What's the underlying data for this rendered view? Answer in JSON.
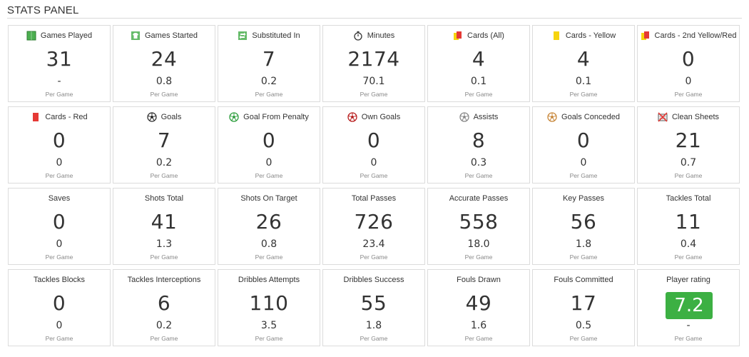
{
  "panel": {
    "title": "STATS PANEL"
  },
  "colors": {
    "rating_bg": "#3cb043",
    "yellow_card": "#f6d40f",
    "red_card": "#e53935",
    "pitch_green": "#4caf50"
  },
  "cards": [
    {
      "label": "Games Played",
      "icon": "pitch-icon",
      "value": "31",
      "per": "-",
      "per_label": "Per Game"
    },
    {
      "label": "Games Started",
      "icon": "shirt-icon",
      "value": "24",
      "per": "0.8",
      "per_label": "Per Game"
    },
    {
      "label": "Substituted In",
      "icon": "substitution-icon",
      "value": "7",
      "per": "0.2",
      "per_label": "Per Game"
    },
    {
      "label": "Minutes",
      "icon": "stopwatch-icon",
      "value": "2174",
      "per": "70.1",
      "per_label": "Per Game"
    },
    {
      "label": "Cards (All)",
      "icon": "cards-all-icon",
      "value": "4",
      "per": "0.1",
      "per_label": "Per Game"
    },
    {
      "label": "Cards - Yellow",
      "icon": "yellow-card-icon",
      "value": "4",
      "per": "0.1",
      "per_label": "Per Game"
    },
    {
      "label": "Cards - 2nd Yellow/Red",
      "icon": "second-yellow-icon",
      "value": "0",
      "per": "0",
      "per_label": "Per Game"
    },
    {
      "label": "Cards - Red",
      "icon": "red-card-icon",
      "value": "0",
      "per": "0",
      "per_label": "Per Game"
    },
    {
      "label": "Goals",
      "icon": "ball-icon",
      "value": "7",
      "per": "0.2",
      "per_label": "Per Game"
    },
    {
      "label": "Goal From Penalty",
      "icon": "penalty-ball-icon",
      "value": "0",
      "per": "0",
      "per_label": "Per Game"
    },
    {
      "label": "Own Goals",
      "icon": "own-goal-ball-icon",
      "value": "0",
      "per": "0",
      "per_label": "Per Game"
    },
    {
      "label": "Assists",
      "icon": "assist-ball-icon",
      "value": "8",
      "per": "0.3",
      "per_label": "Per Game"
    },
    {
      "label": "Goals Conceded",
      "icon": "conceded-ball-icon",
      "value": "0",
      "per": "0",
      "per_label": "Per Game"
    },
    {
      "label": "Clean Sheets",
      "icon": "clean-sheet-icon",
      "value": "21",
      "per": "0.7",
      "per_label": "Per Game"
    },
    {
      "label": "Saves",
      "icon": "",
      "value": "0",
      "per": "0",
      "per_label": "Per Game"
    },
    {
      "label": "Shots Total",
      "icon": "",
      "value": "41",
      "per": "1.3",
      "per_label": "Per Game"
    },
    {
      "label": "Shots On Target",
      "icon": "",
      "value": "26",
      "per": "0.8",
      "per_label": "Per Game"
    },
    {
      "label": "Total Passes",
      "icon": "",
      "value": "726",
      "per": "23.4",
      "per_label": "Per Game"
    },
    {
      "label": "Accurate Passes",
      "icon": "",
      "value": "558",
      "per": "18.0",
      "per_label": "Per Game"
    },
    {
      "label": "Key Passes",
      "icon": "",
      "value": "56",
      "per": "1.8",
      "per_label": "Per Game"
    },
    {
      "label": "Tackles Total",
      "icon": "",
      "value": "11",
      "per": "0.4",
      "per_label": "Per Game"
    },
    {
      "label": "Tackles Blocks",
      "icon": "",
      "value": "0",
      "per": "0",
      "per_label": "Per Game"
    },
    {
      "label": "Tackles Interceptions",
      "icon": "",
      "value": "6",
      "per": "0.2",
      "per_label": "Per Game"
    },
    {
      "label": "Dribbles Attempts",
      "icon": "",
      "value": "110",
      "per": "3.5",
      "per_label": "Per Game"
    },
    {
      "label": "Dribbles Success",
      "icon": "",
      "value": "55",
      "per": "1.8",
      "per_label": "Per Game"
    },
    {
      "label": "Fouls Drawn",
      "icon": "",
      "value": "49",
      "per": "1.6",
      "per_label": "Per Game"
    },
    {
      "label": "Fouls Committed",
      "icon": "",
      "value": "17",
      "per": "0.5",
      "per_label": "Per Game"
    },
    {
      "label": "Player rating",
      "icon": "",
      "value": "7.2",
      "per": "-",
      "per_label": "Per Game",
      "highlight": true
    }
  ]
}
